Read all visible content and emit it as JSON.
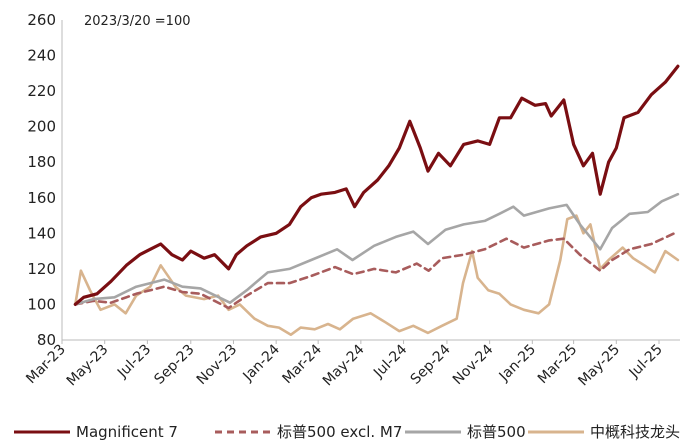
{
  "chart_data": {
    "type": "line",
    "annotation": "2023/3/20 =100",
    "ylim": [
      80,
      260
    ],
    "yticks": [
      80,
      100,
      120,
      140,
      160,
      180,
      200,
      220,
      240,
      260
    ],
    "xlim": [
      "2023-03-01",
      "2025-07-31"
    ],
    "xticks": [
      {
        "date": "2023-03-01",
        "label": "Mar-23"
      },
      {
        "date": "2023-05-01",
        "label": "May-23"
      },
      {
        "date": "2023-07-01",
        "label": "Jul-23"
      },
      {
        "date": "2023-09-01",
        "label": "Sep-23"
      },
      {
        "date": "2023-11-01",
        "label": "Nov-23"
      },
      {
        "date": "2024-01-01",
        "label": "Jan-24"
      },
      {
        "date": "2024-03-01",
        "label": "Mar-24"
      },
      {
        "date": "2024-05-01",
        "label": "May-24"
      },
      {
        "date": "2024-07-01",
        "label": "Jul-24"
      },
      {
        "date": "2024-09-01",
        "label": "Sep-24"
      },
      {
        "date": "2024-11-01",
        "label": "Nov-24"
      },
      {
        "date": "2025-01-01",
        "label": "Jan-25"
      },
      {
        "date": "2025-03-01",
        "label": "Mar-25"
      },
      {
        "date": "2025-05-01",
        "label": "May-25"
      },
      {
        "date": "2025-07-01",
        "label": "Jul-25"
      }
    ],
    "legend_position": "bottom",
    "series": [
      {
        "name": "Magnificent 7",
        "color": "#7a0e12",
        "dash": "solid",
        "points": [
          [
            "2023-03-20",
            100
          ],
          [
            "2023-04-01",
            104
          ],
          [
            "2023-04-20",
            106
          ],
          [
            "2023-05-10",
            113
          ],
          [
            "2023-06-01",
            122
          ],
          [
            "2023-06-20",
            128
          ],
          [
            "2023-07-05",
            131
          ],
          [
            "2023-07-20",
            134
          ],
          [
            "2023-08-05",
            128
          ],
          [
            "2023-08-20",
            125
          ],
          [
            "2023-09-01",
            130
          ],
          [
            "2023-09-20",
            126
          ],
          [
            "2023-10-05",
            128
          ],
          [
            "2023-10-25",
            120
          ],
          [
            "2023-11-05",
            128
          ],
          [
            "2023-11-20",
            133
          ],
          [
            "2023-12-10",
            138
          ],
          [
            "2024-01-01",
            140
          ],
          [
            "2024-01-20",
            145
          ],
          [
            "2024-02-05",
            155
          ],
          [
            "2024-02-20",
            160
          ],
          [
            "2024-03-05",
            162
          ],
          [
            "2024-03-25",
            163
          ],
          [
            "2024-04-10",
            165
          ],
          [
            "2024-04-22",
            155
          ],
          [
            "2024-05-05",
            163
          ],
          [
            "2024-05-25",
            170
          ],
          [
            "2024-06-10",
            178
          ],
          [
            "2024-06-25",
            188
          ],
          [
            "2024-07-10",
            203
          ],
          [
            "2024-07-25",
            188
          ],
          [
            "2024-08-05",
            175
          ],
          [
            "2024-08-20",
            185
          ],
          [
            "2024-09-06",
            178
          ],
          [
            "2024-09-25",
            190
          ],
          [
            "2024-10-15",
            192
          ],
          [
            "2024-11-01",
            190
          ],
          [
            "2024-11-15",
            205
          ],
          [
            "2024-12-01",
            205
          ],
          [
            "2024-12-17",
            216
          ],
          [
            "2025-01-05",
            212
          ],
          [
            "2025-01-20",
            213
          ],
          [
            "2025-01-28",
            206
          ],
          [
            "2025-02-15",
            215
          ],
          [
            "2025-03-01",
            190
          ],
          [
            "2025-03-15",
            178
          ],
          [
            "2025-03-28",
            185
          ],
          [
            "2025-04-08",
            162
          ],
          [
            "2025-04-20",
            180
          ],
          [
            "2025-05-01",
            188
          ],
          [
            "2025-05-12",
            205
          ],
          [
            "2025-06-01",
            208
          ],
          [
            "2025-06-20",
            218
          ],
          [
            "2025-07-10",
            225
          ],
          [
            "2025-07-28",
            234
          ]
        ]
      },
      {
        "name": "标普500 excl. M7",
        "color": "#a85c5c",
        "dash": "dash",
        "points": [
          [
            "2023-03-20",
            100
          ],
          [
            "2023-04-15",
            102
          ],
          [
            "2023-05-10",
            101
          ],
          [
            "2023-06-15",
            106
          ],
          [
            "2023-07-25",
            110
          ],
          [
            "2023-08-20",
            107
          ],
          [
            "2023-09-15",
            106
          ],
          [
            "2023-10-25",
            98
          ],
          [
            "2023-11-20",
            105
          ],
          [
            "2023-12-20",
            112
          ],
          [
            "2024-01-20",
            112
          ],
          [
            "2024-02-20",
            116
          ],
          [
            "2024-03-25",
            121
          ],
          [
            "2024-04-20",
            117
          ],
          [
            "2024-05-20",
            120
          ],
          [
            "2024-06-20",
            118
          ],
          [
            "2024-07-20",
            123
          ],
          [
            "2024-08-06",
            119
          ],
          [
            "2024-08-25",
            126
          ],
          [
            "2024-09-25",
            128
          ],
          [
            "2024-10-25",
            131
          ],
          [
            "2024-11-25",
            137
          ],
          [
            "2024-12-20",
            132
          ],
          [
            "2025-01-25",
            136
          ],
          [
            "2025-02-15",
            137
          ],
          [
            "2025-03-10",
            128
          ],
          [
            "2025-04-08",
            119
          ],
          [
            "2025-04-25",
            125
          ],
          [
            "2025-05-20",
            131
          ],
          [
            "2025-06-20",
            134
          ],
          [
            "2025-07-28",
            141
          ]
        ]
      },
      {
        "name": "标普500",
        "color": "#a6a6a6",
        "dash": "solid",
        "points": [
          [
            "2023-03-20",
            100
          ],
          [
            "2023-04-15",
            103
          ],
          [
            "2023-05-15",
            104
          ],
          [
            "2023-06-15",
            110
          ],
          [
            "2023-07-25",
            114
          ],
          [
            "2023-08-20",
            110
          ],
          [
            "2023-09-15",
            109
          ],
          [
            "2023-10-27",
            101
          ],
          [
            "2023-11-20",
            108
          ],
          [
            "2023-12-20",
            118
          ],
          [
            "2024-01-20",
            120
          ],
          [
            "2024-02-20",
            125
          ],
          [
            "2024-03-28",
            131
          ],
          [
            "2024-04-19",
            125
          ],
          [
            "2024-05-20",
            133
          ],
          [
            "2024-06-20",
            138
          ],
          [
            "2024-07-15",
            141
          ],
          [
            "2024-08-05",
            134
          ],
          [
            "2024-08-30",
            142
          ],
          [
            "2024-09-25",
            145
          ],
          [
            "2024-10-25",
            147
          ],
          [
            "2024-11-15",
            151
          ],
          [
            "2024-12-05",
            155
          ],
          [
            "2024-12-20",
            150
          ],
          [
            "2025-01-25",
            154
          ],
          [
            "2025-02-19",
            156
          ],
          [
            "2025-03-10",
            145
          ],
          [
            "2025-04-08",
            131
          ],
          [
            "2025-04-25",
            143
          ],
          [
            "2025-05-20",
            151
          ],
          [
            "2025-06-15",
            152
          ],
          [
            "2025-07-05",
            158
          ],
          [
            "2025-07-28",
            162
          ]
        ]
      },
      {
        "name": "中概科技龙头",
        "color": "#d8b48e",
        "dash": "solid",
        "points": [
          [
            "2023-03-20",
            100
          ],
          [
            "2023-03-28",
            119
          ],
          [
            "2023-04-10",
            108
          ],
          [
            "2023-04-25",
            97
          ],
          [
            "2023-05-15",
            100
          ],
          [
            "2023-05-31",
            95
          ],
          [
            "2023-06-15",
            105
          ],
          [
            "2023-07-05",
            110
          ],
          [
            "2023-07-20",
            122
          ],
          [
            "2023-08-10",
            110
          ],
          [
            "2023-08-25",
            105
          ],
          [
            "2023-09-20",
            103
          ],
          [
            "2023-10-10",
            105
          ],
          [
            "2023-10-25",
            97
          ],
          [
            "2023-11-10",
            100
          ],
          [
            "2023-12-01",
            92
          ],
          [
            "2023-12-20",
            88
          ],
          [
            "2024-01-05",
            87
          ],
          [
            "2024-01-22",
            83
          ],
          [
            "2024-02-05",
            87
          ],
          [
            "2024-02-25",
            86
          ],
          [
            "2024-03-15",
            89
          ],
          [
            "2024-04-01",
            86
          ],
          [
            "2024-04-20",
            92
          ],
          [
            "2024-05-15",
            95
          ],
          [
            "2024-06-05",
            90
          ],
          [
            "2024-06-25",
            85
          ],
          [
            "2024-07-15",
            88
          ],
          [
            "2024-08-05",
            84
          ],
          [
            "2024-08-25",
            88
          ],
          [
            "2024-09-15",
            92
          ],
          [
            "2024-09-24",
            112
          ],
          [
            "2024-10-07",
            130
          ],
          [
            "2024-10-15",
            115
          ],
          [
            "2024-10-30",
            108
          ],
          [
            "2024-11-15",
            106
          ],
          [
            "2024-12-01",
            100
          ],
          [
            "2024-12-20",
            97
          ],
          [
            "2025-01-10",
            95
          ],
          [
            "2025-01-25",
            100
          ],
          [
            "2025-02-10",
            125
          ],
          [
            "2025-02-20",
            148
          ],
          [
            "2025-03-05",
            150
          ],
          [
            "2025-03-15",
            140
          ],
          [
            "2025-03-25",
            145
          ],
          [
            "2025-04-08",
            120
          ],
          [
            "2025-04-20",
            125
          ],
          [
            "2025-05-10",
            132
          ],
          [
            "2025-05-25",
            126
          ],
          [
            "2025-06-10",
            122
          ],
          [
            "2025-06-25",
            118
          ],
          [
            "2025-07-10",
            130
          ],
          [
            "2025-07-28",
            125
          ]
        ]
      }
    ]
  }
}
